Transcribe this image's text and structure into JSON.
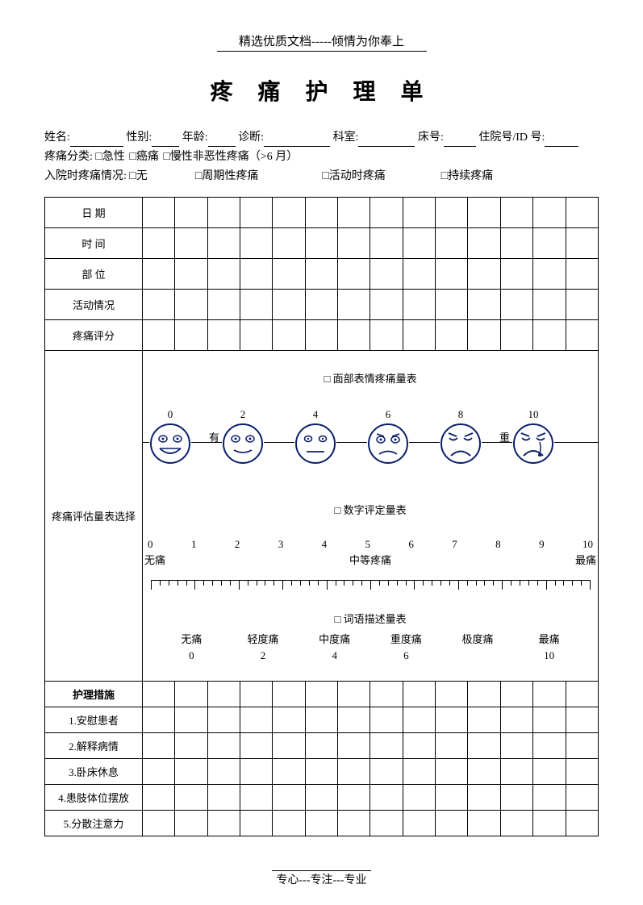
{
  "header_tag": "精选优质文档-----倾情为你奉上",
  "title": "疼 痛 护 理 单",
  "info_fields": {
    "name": "姓名:",
    "sex": "性别:",
    "age": "年龄:",
    "diagnosis": "诊断:",
    "dept": "科室:",
    "bed": "床号:",
    "id": "住院号/ID 号:"
  },
  "pain_class": {
    "label": "疼痛分类:",
    "opts": [
      "急性",
      "癌痛",
      "慢性非恶性疼痛（>6 月）"
    ]
  },
  "admission_pain": {
    "label": "入院时疼痛情况:",
    "opts": [
      "无",
      "周期性疼痛",
      "活动时疼痛",
      "持续疼痛"
    ]
  },
  "row_headers": [
    "日  期",
    "时   间",
    "部  位",
    "活动情况",
    "疼痛评分"
  ],
  "scale_select_label": "疼痛评估量表选择",
  "scales": {
    "face": {
      "label": "面部表情疼痛量表",
      "numbers": [
        "0",
        "2",
        "4",
        "6",
        "8",
        "10"
      ],
      "between_labels": [
        "有",
        "重"
      ],
      "face_color": "#0b1f6b",
      "face_size": 52
    },
    "nrs": {
      "label": "数字评定量表",
      "numbers": [
        "0",
        "1",
        "2",
        "3",
        "4",
        "5",
        "6",
        "7",
        "8",
        "9",
        "10"
      ],
      "anchors": {
        "left": "无痛",
        "mid": "中等疼痛",
        "right": "最痛"
      },
      "tick_count": 51
    },
    "vrs": {
      "label": "词语描述量表",
      "words": [
        "无痛",
        "轻度痛",
        "中度痛",
        "重度痛",
        "极度痛",
        "最痛"
      ],
      "nums": [
        "0",
        "2",
        "4",
        "6",
        "",
        "10"
      ]
    }
  },
  "measures_header": "护理措施",
  "measures": [
    "1.安慰患者",
    "2.解释病情",
    "3.卧床休息",
    "4.患肢体位摆放",
    "5.分散注意力"
  ],
  "footer_tag": "专心---专注---专业",
  "data_cols": 14
}
